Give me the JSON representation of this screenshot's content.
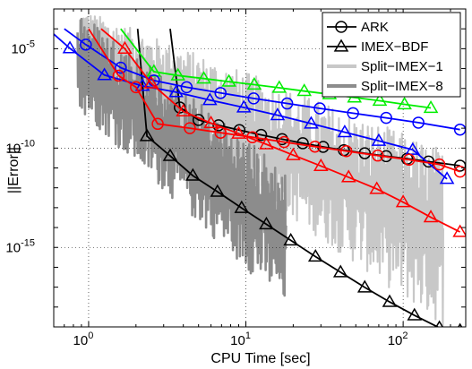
{
  "chart_data": {
    "type": "line",
    "title": "",
    "xlabel": "CPU Time [sec]",
    "ylabel": "||Error||",
    "xscale": "log",
    "yscale": "log",
    "xlim": [
      0.6,
      250
    ],
    "ylim": [
      1e-19,
      0.001
    ],
    "grid": true,
    "legend_position": "top-right",
    "x_ticks": [
      {
        "value": 1,
        "base": "10",
        "exp": "0"
      },
      {
        "value": 10,
        "base": "10",
        "exp": "1"
      },
      {
        "value": 100,
        "base": "10",
        "exp": "2"
      }
    ],
    "y_ticks": [
      {
        "value": 1e-05,
        "base": "10",
        "exp": "-5"
      },
      {
        "value": 1e-10,
        "base": "10",
        "exp": "-10"
      },
      {
        "value": 1e-15,
        "base": "10",
        "exp": "-15"
      }
    ],
    "legend": [
      {
        "label": "ARK",
        "style": "line-circle",
        "color": "#000000"
      },
      {
        "label": "IMEX−BDF",
        "style": "line-triangle",
        "color": "#000000"
      },
      {
        "label": "Split−IMEX−1",
        "style": "thick-line",
        "color": "#c8c8c8"
      },
      {
        "label": "Split−IMEX−8",
        "style": "thick-line",
        "color": "#8c8c8c"
      }
    ],
    "series": [
      {
        "name": "ARK",
        "color": "#000000",
        "marker": "circle",
        "clip_top": true,
        "x": [
          3.3,
          3.8,
          5.0,
          6.7,
          9.1,
          12.5,
          17,
          23,
          31,
          42,
          57,
          78,
          106,
          145,
          230
        ],
        "y": [
          0.0001,
          1.1e-08,
          2.6e-09,
          1.4e-09,
          8e-10,
          4.6e-10,
          2.8e-10,
          1.75e-10,
          1.15e-10,
          7.8e-11,
          5.5e-11,
          3.9e-11,
          2.9e-11,
          2.1e-11,
          1.3e-11
        ]
      },
      {
        "name": "IMEX−BDF",
        "color": "#000000",
        "marker": "triangle",
        "clip_top": true,
        "x": [
          2.05,
          2.35,
          3.3,
          4.6,
          6.6,
          9.4,
          13.5,
          19.3,
          27.7,
          40,
          57,
          82,
          118,
          170,
          230
        ],
        "y": [
          0.0001,
          4e-10,
          4e-11,
          4.1e-12,
          6.3e-13,
          9.7e-14,
          1.46e-14,
          2.25e-15,
          3.45e-16,
          5.6e-17,
          9.7e-18,
          1.8e-18,
          3.8e-19,
          9e-20,
          6.6e-20
        ]
      },
      {
        "name": "green",
        "color": "#00ee00",
        "marker": "triangle",
        "clip_top": true,
        "x": [
          1.6,
          2.6,
          3.7,
          5.4,
          7.8,
          11.3,
          16.3,
          23.5,
          34,
          49,
          71,
          102,
          150
        ],
        "y": [
          0.0001,
          7e-07,
          4.5e-07,
          3.15e-07,
          2.2e-07,
          1.55e-07,
          1.08e-07,
          7.4e-08,
          5.1e-08,
          3.5e-08,
          2.4e-08,
          1.58e-08,
          1.05e-08
        ]
      },
      {
        "name": "blue",
        "color": "#0000ff",
        "marker": "circle",
        "clip_top": true,
        "x": [
          0.7,
          0.96,
          1.6,
          2.6,
          4.2,
          6.9,
          11.2,
          18.3,
          29.5,
          48,
          78,
          125,
          230
        ],
        "y": [
          0.0001,
          1.6e-05,
          1.1e-06,
          2.5e-07,
          1.15e-07,
          5.9e-08,
          3.15e-08,
          1.75e-08,
          9.9e-09,
          5.7e-09,
          3.3e-09,
          1.9e-09,
          8.5e-10
        ]
      },
      {
        "name": "blue",
        "color": "#0000ff",
        "marker": "triangle",
        "clip_top": true,
        "x": [
          0.55,
          0.76,
          1.26,
          2.2,
          3.6,
          5.9,
          9.7,
          15.9,
          26,
          42.5,
          70,
          115,
          190
        ],
        "y": [
          0.0001,
          1.05e-05,
          4.7e-07,
          1.35e-07,
          6.5e-08,
          2.6e-08,
          1.1e-08,
          4.5e-09,
          1.7e-09,
          6.3e-10,
          2.3e-10,
          8.2e-11,
          2.8e-12
        ]
      },
      {
        "name": "red",
        "color": "#ff0000",
        "marker": "circle",
        "clip_top": true,
        "x": [
          1.0,
          1.55,
          2.0,
          2.75,
          4.4,
          6.9,
          11,
          17.5,
          27.5,
          43.5,
          69,
          109,
          170,
          230
        ],
        "y": [
          0.0001,
          4.4e-07,
          1.15e-07,
          1.65e-09,
          1e-09,
          5.9e-10,
          3.5e-10,
          2e-10,
          1.18e-10,
          7e-11,
          4.2e-11,
          2.6e-11,
          1.5e-11,
          6.5e-12
        ]
      },
      {
        "name": "red",
        "color": "#ff0000",
        "marker": "triangle",
        "clip_top": true,
        "x": [
          1.2,
          1.7,
          2.5,
          4.0,
          6.0,
          9.0,
          13.5,
          20,
          30,
          45,
          68,
          100,
          150,
          230
        ],
        "y": [
          0.0001,
          1e-05,
          1.8e-07,
          7e-09,
          1.8e-09,
          5.3e-10,
          1.55e-10,
          4.4e-11,
          1.25e-11,
          3.4e-12,
          8.8e-13,
          1.9e-13,
          3.3e-14,
          6e-15
        ]
      }
    ],
    "envelopes": [
      {
        "name": "Split−IMEX−1",
        "color": "#c8c8c8",
        "x_range": [
          0.9,
          180
        ],
        "upper_start": 0.001,
        "upper_end": 1e-10,
        "lower_start": 1e-06,
        "lower_end": 1e-19
      },
      {
        "name": "Split−IMEX−8",
        "color": "#8c8c8c",
        "x_range": [
          0.85,
          18
        ],
        "upper_start": 0.001,
        "upper_end": 1e-11,
        "lower_start": 1e-08,
        "lower_end": 1e-18
      }
    ]
  }
}
